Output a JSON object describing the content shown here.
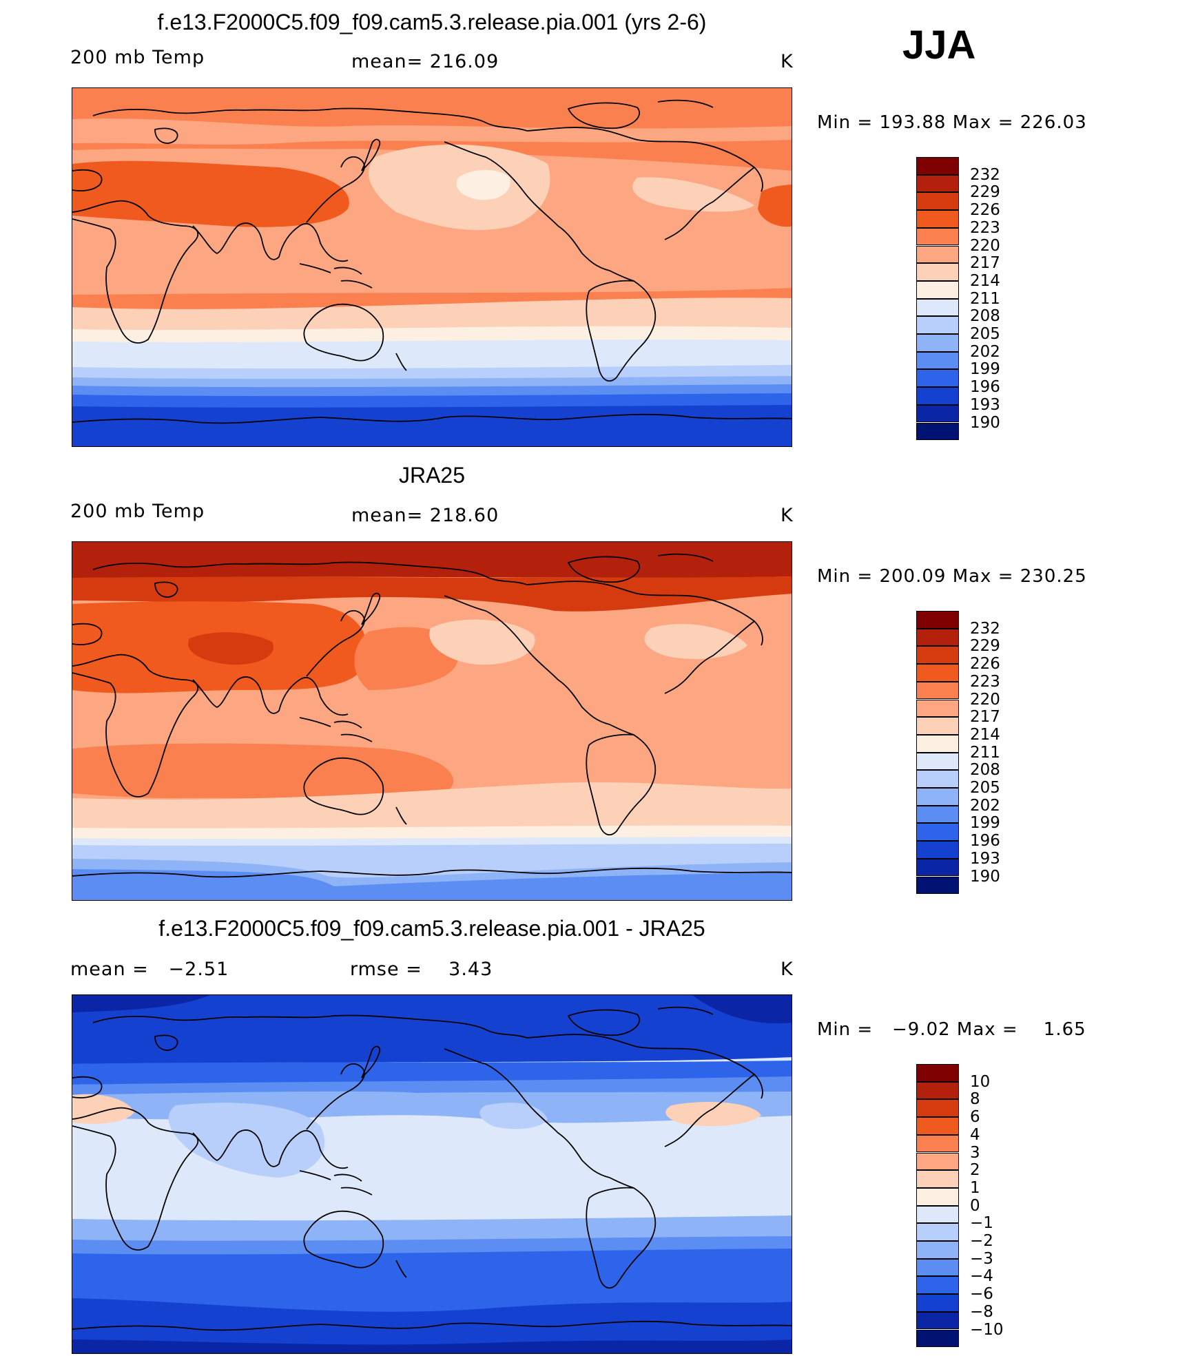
{
  "season": "JJA",
  "panels": [
    {
      "title": "f.e13.F2000C5.f09_f09.cam5.3.release.pia.001 (yrs 2-6)",
      "left_label": "200 mb Temp",
      "center_label": "mean= 216.09",
      "units": "K",
      "minmax": "Min = 193.88 Max = 226.03",
      "colorbar_labels": [
        "232",
        "229",
        "226",
        "223",
        "220",
        "217",
        "214",
        "211",
        "208",
        "205",
        "202",
        "199",
        "196",
        "193",
        "190"
      ],
      "colorbar_colors": [
        "#7f0000",
        "#b3200b",
        "#d63b10",
        "#f05a1e",
        "#fb8050",
        "#fca782",
        "#fdd0b8",
        "#fdf0e2",
        "#dde9fa",
        "#b7cffa",
        "#8fb3f7",
        "#5b8df2",
        "#2e64ea",
        "#1541d0",
        "#0a25a6",
        "#001272"
      ],
      "map_colors": [
        "#fb8050",
        "#fca782",
        "#f05a1e",
        "#fdd0b8",
        "#fdf0e2",
        "#dde9fa",
        "#b7cffa",
        "#8fb3f7",
        "#5b8df2",
        "#2e64ea",
        "#1541d0"
      ],
      "map_stats": {
        "min": 193.88,
        "max": 226.03,
        "mean": 216.09
      }
    },
    {
      "title": "JRA25",
      "left_label": "200 mb Temp",
      "center_label": "mean= 218.60",
      "units": "K",
      "minmax": "Min = 200.09 Max = 230.25",
      "colorbar_labels": [
        "232",
        "229",
        "226",
        "223",
        "220",
        "217",
        "214",
        "211",
        "208",
        "205",
        "202",
        "199",
        "196",
        "193",
        "190"
      ],
      "colorbar_colors": [
        "#7f0000",
        "#b3200b",
        "#d63b10",
        "#f05a1e",
        "#fb8050",
        "#fca782",
        "#fdd0b8",
        "#fdf0e2",
        "#dde9fa",
        "#b7cffa",
        "#8fb3f7",
        "#5b8df2",
        "#2e64ea",
        "#1541d0",
        "#0a25a6",
        "#001272"
      ],
      "map_colors": [
        "#b3200b",
        "#d63b10",
        "#f05a1e",
        "#fb8050",
        "#fca782",
        "#fdd0b8",
        "#fdf0e2",
        "#dde9fa",
        "#b7cffa",
        "#8fb3f7",
        "#5b8df2"
      ],
      "map_stats": {
        "min": 200.09,
        "max": 230.25,
        "mean": 218.6
      }
    },
    {
      "title": "f.e13.F2000C5.f09_f09.cam5.3.release.pia.001 - JRA25",
      "left_label": "mean =   −2.51",
      "center_label": "rmse =    3.43",
      "units": "K",
      "minmax": "Min =   −9.02 Max =    1.65",
      "colorbar_labels": [
        "10",
        "8",
        "6",
        "4",
        "3",
        "2",
        "1",
        "0",
        "−1",
        "−2",
        "−3",
        "−4",
        "−6",
        "−8",
        "−10"
      ],
      "colorbar_colors": [
        "#7f0000",
        "#b3200b",
        "#d63b10",
        "#f05a1e",
        "#fb8050",
        "#fca782",
        "#fdd0b8",
        "#fdf0e2",
        "#dde9fa",
        "#b7cffa",
        "#8fb3f7",
        "#5b8df2",
        "#2e64ea",
        "#1541d0",
        "#0a25a6",
        "#001272"
      ],
      "map_colors": [
        "#1541d0",
        "#2e64ea",
        "#5b8df2",
        "#8fb3f7",
        "#b7cffa",
        "#dde9fa",
        "#fdd0b8",
        "#0a25a6"
      ],
      "map_stats": {
        "min": -9.02,
        "max": 1.65,
        "mean": -2.51,
        "rmse": 3.43
      }
    }
  ]
}
